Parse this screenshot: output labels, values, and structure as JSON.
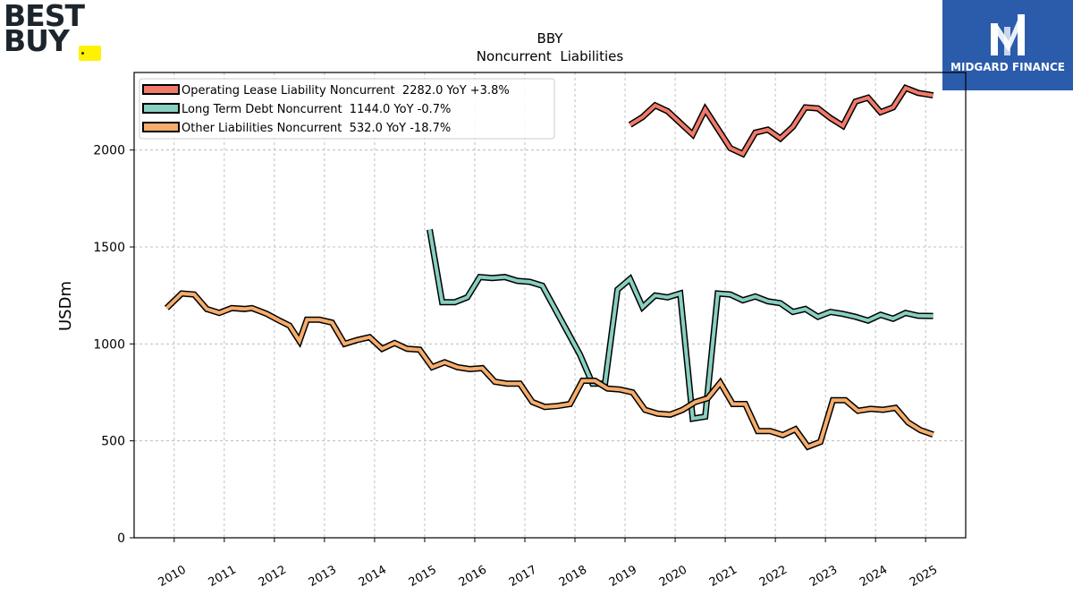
{
  "brand_left": {
    "line1": "BEST",
    "line2": "BUY",
    "tag_color": "#fff200",
    "text_color": "#1d252c"
  },
  "brand_right": {
    "name": "MIDGARD FINANCE",
    "bg_color": "#2b5cab",
    "icon": "midgard-m-icon"
  },
  "chart_data": {
    "type": "line",
    "title": "BBY",
    "subtitle": "Noncurrent  Liabilities",
    "ylabel": "USDm",
    "xlabel": "",
    "ylim": [
      0,
      2400
    ],
    "yticks": [
      0,
      500,
      1000,
      1500,
      2000
    ],
    "xlim": [
      2009.2,
      2025.8
    ],
    "xticks": [
      "2010",
      "2011",
      "2012",
      "2013",
      "2014",
      "2015",
      "2016",
      "2017",
      "2018",
      "2019",
      "2020",
      "2021",
      "2022",
      "2023",
      "2024",
      "2025"
    ],
    "grid": true,
    "legend_position": "top-left",
    "series": [
      {
        "name": "Operating Lease Liability Noncurrent",
        "legend_label": "Operating Lease Liability Noncurrent  2282.0 YoY +3.8%",
        "color": "#f07a6a",
        "points": [
          [
            2019.1,
            2130
          ],
          [
            2019.35,
            2170
          ],
          [
            2019.6,
            2230
          ],
          [
            2019.85,
            2200
          ],
          [
            2020.1,
            2140
          ],
          [
            2020.35,
            2080
          ],
          [
            2020.6,
            2210
          ],
          [
            2020.85,
            2110
          ],
          [
            2021.1,
            2010
          ],
          [
            2021.35,
            1980
          ],
          [
            2021.6,
            2090
          ],
          [
            2021.85,
            2105
          ],
          [
            2022.1,
            2060
          ],
          [
            2022.35,
            2120
          ],
          [
            2022.6,
            2220
          ],
          [
            2022.85,
            2215
          ],
          [
            2023.1,
            2165
          ],
          [
            2023.35,
            2125
          ],
          [
            2023.6,
            2250
          ],
          [
            2023.85,
            2270
          ],
          [
            2024.1,
            2195
          ],
          [
            2024.35,
            2220
          ],
          [
            2024.6,
            2320
          ],
          [
            2024.85,
            2295
          ],
          [
            2025.15,
            2282
          ]
        ]
      },
      {
        "name": "Long Term Debt Noncurrent",
        "legend_label": "Long Term Debt Noncurrent  1144.0 YoY -0.7%",
        "color": "#88cfc0",
        "points": [
          [
            2015.1,
            1590
          ],
          [
            2015.35,
            1215
          ],
          [
            2015.6,
            1215
          ],
          [
            2015.85,
            1240
          ],
          [
            2016.1,
            1345
          ],
          [
            2016.35,
            1340
          ],
          [
            2016.6,
            1345
          ],
          [
            2016.85,
            1325
          ],
          [
            2017.1,
            1320
          ],
          [
            2017.35,
            1300
          ],
          [
            2018.1,
            945
          ],
          [
            2018.35,
            795
          ],
          [
            2018.6,
            795
          ],
          [
            2018.85,
            1280
          ],
          [
            2019.1,
            1335
          ],
          [
            2019.35,
            1190
          ],
          [
            2019.6,
            1250
          ],
          [
            2019.85,
            1240
          ],
          [
            2020.1,
            1260
          ],
          [
            2020.35,
            615
          ],
          [
            2020.6,
            625
          ],
          [
            2020.85,
            1260
          ],
          [
            2021.1,
            1255
          ],
          [
            2021.35,
            1225
          ],
          [
            2021.6,
            1245
          ],
          [
            2021.85,
            1220
          ],
          [
            2022.1,
            1210
          ],
          [
            2022.35,
            1165
          ],
          [
            2022.6,
            1180
          ],
          [
            2022.85,
            1140
          ],
          [
            2023.1,
            1165
          ],
          [
            2023.35,
            1155
          ],
          [
            2023.6,
            1140
          ],
          [
            2023.85,
            1120
          ],
          [
            2024.1,
            1150
          ],
          [
            2024.35,
            1130
          ],
          [
            2024.6,
            1160
          ],
          [
            2024.85,
            1145
          ],
          [
            2025.15,
            1144
          ]
        ]
      },
      {
        "name": "Other Liabilities Noncurrent",
        "legend_label": "Other Liabilities Noncurrent  532.0 YoY -18.7%",
        "color": "#f5ad6c",
        "points": [
          [
            2009.85,
            1185
          ],
          [
            2010.15,
            1260
          ],
          [
            2010.4,
            1255
          ],
          [
            2010.65,
            1180
          ],
          [
            2010.9,
            1160
          ],
          [
            2011.15,
            1185
          ],
          [
            2011.4,
            1180
          ],
          [
            2011.55,
            1185
          ],
          [
            2011.7,
            1170
          ],
          [
            2011.85,
            1155
          ],
          [
            2012.1,
            1120
          ],
          [
            2012.3,
            1095
          ],
          [
            2012.5,
            1015
          ],
          [
            2012.65,
            1125
          ],
          [
            2012.9,
            1125
          ],
          [
            2013.15,
            1110
          ],
          [
            2013.4,
            1000
          ],
          [
            2013.65,
            1020
          ],
          [
            2013.9,
            1035
          ],
          [
            2014.15,
            975
          ],
          [
            2014.4,
            1005
          ],
          [
            2014.65,
            975
          ],
          [
            2014.9,
            970
          ],
          [
            2015.15,
            880
          ],
          [
            2015.4,
            905
          ],
          [
            2015.65,
            880
          ],
          [
            2015.9,
            870
          ],
          [
            2016.15,
            875
          ],
          [
            2016.4,
            805
          ],
          [
            2016.65,
            795
          ],
          [
            2016.9,
            795
          ],
          [
            2017.15,
            700
          ],
          [
            2017.4,
            675
          ],
          [
            2017.65,
            680
          ],
          [
            2017.9,
            690
          ],
          [
            2018.15,
            810
          ],
          [
            2018.4,
            810
          ],
          [
            2018.65,
            770
          ],
          [
            2018.9,
            765
          ],
          [
            2019.15,
            750
          ],
          [
            2019.4,
            660
          ],
          [
            2019.65,
            640
          ],
          [
            2019.9,
            635
          ],
          [
            2020.15,
            660
          ],
          [
            2020.4,
            700
          ],
          [
            2020.65,
            720
          ],
          [
            2020.9,
            800
          ],
          [
            2021.15,
            690
          ],
          [
            2021.4,
            690
          ],
          [
            2021.65,
            550
          ],
          [
            2021.9,
            550
          ],
          [
            2022.15,
            530
          ],
          [
            2022.4,
            560
          ],
          [
            2022.65,
            470
          ],
          [
            2022.9,
            495
          ],
          [
            2023.15,
            710
          ],
          [
            2023.4,
            710
          ],
          [
            2023.65,
            655
          ],
          [
            2023.9,
            665
          ],
          [
            2024.15,
            660
          ],
          [
            2024.4,
            670
          ],
          [
            2024.65,
            595
          ],
          [
            2024.9,
            555
          ],
          [
            2025.15,
            532
          ]
        ]
      }
    ]
  }
}
